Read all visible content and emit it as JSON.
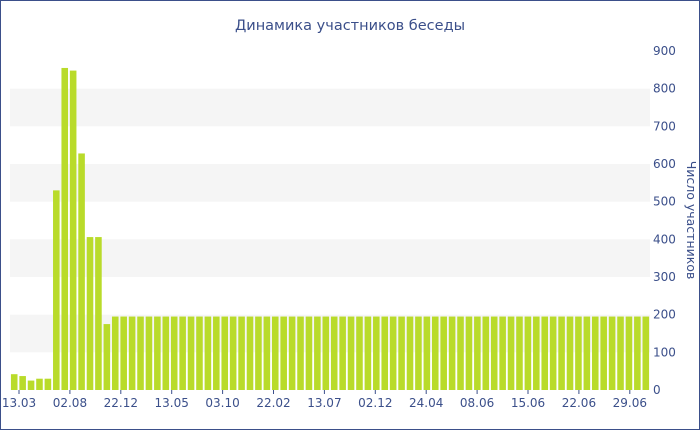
{
  "chart_data": {
    "type": "bar",
    "title": "Динамика участников беседы",
    "xlabel": "",
    "ylabel": "Число участников",
    "ylim": [
      0,
      900
    ],
    "y_ticks": [
      0,
      100,
      200,
      300,
      400,
      500,
      600,
      700,
      800,
      900
    ],
    "y_axis_side": "right",
    "grid": "alternating horizontal bands",
    "legend": "none",
    "colors": {
      "bar": "#b9db2a",
      "text": "#3b4f8a",
      "band": "#f5f5f5",
      "frame": "#3b4f8a"
    },
    "x_tick_labels": [
      "13.03",
      "02.08",
      "22.12",
      "13.05",
      "03.10",
      "22.02",
      "13.07",
      "02.12",
      "24.04",
      "08.06",
      "15.06",
      "22.06",
      "29.06"
    ],
    "values": [
      42,
      37,
      25,
      30,
      30,
      530,
      855,
      848,
      628,
      406,
      406,
      175,
      195,
      195,
      195,
      195,
      195,
      195,
      195,
      195,
      195,
      195,
      195,
      195,
      195,
      195,
      195,
      195,
      195,
      195,
      195,
      195,
      195,
      195,
      195,
      195,
      195,
      195,
      195,
      195,
      195,
      195,
      195,
      195,
      195,
      195,
      195,
      195,
      195,
      195,
      195,
      195,
      195,
      195,
      195,
      195,
      195,
      195,
      195,
      195,
      195,
      195,
      195,
      195,
      195,
      195,
      195,
      195,
      195,
      195,
      195,
      195,
      195,
      195,
      195,
      195
    ]
  }
}
